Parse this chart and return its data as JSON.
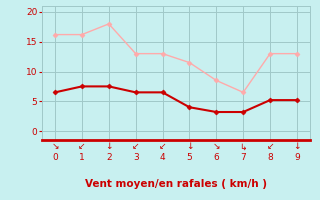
{
  "x": [
    0,
    1,
    2,
    3,
    4,
    5,
    6,
    7,
    8,
    9
  ],
  "wind_avg": [
    6.5,
    7.5,
    7.5,
    6.5,
    6.5,
    4.0,
    3.2,
    3.2,
    5.2,
    5.2
  ],
  "wind_gust": [
    16.2,
    16.2,
    18.0,
    13.0,
    13.0,
    11.5,
    8.5,
    6.5,
    13.0,
    13.0
  ],
  "color_avg": "#cc0000",
  "color_gust": "#ffaaaa",
  "bg_color": "#c8f0f0",
  "grid_color": "#a0c8c8",
  "axis_color": "#cc0000",
  "xlabel": "Vent moyen/en rafales ( km/h )",
  "xlim": [
    -0.5,
    9.5
  ],
  "ylim": [
    -1.5,
    21
  ],
  "yticks": [
    0,
    5,
    10,
    15,
    20
  ],
  "xticks": [
    0,
    1,
    2,
    3,
    4,
    5,
    6,
    7,
    8,
    9
  ],
  "arrow_symbols": [
    "↘",
    "↙",
    "↓",
    "↙",
    "↙",
    "↓",
    "↘",
    "↳",
    "↙",
    "↓"
  ],
  "tick_fontsize": 6.5,
  "xlabel_fontsize": 7.5,
  "arrow_fontsize": 6.5
}
